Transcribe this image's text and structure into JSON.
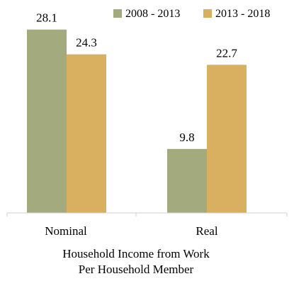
{
  "chart_data": {
    "type": "bar",
    "categories": [
      "Nominal",
      "Real"
    ],
    "series": [
      {
        "name": "2008 - 2013",
        "values": [
          28.1,
          9.8
        ],
        "color": "#A3AA7E"
      },
      {
        "name": "2013 - 2018",
        "values": [
          24.3,
          22.7
        ],
        "color": "#D9B05F"
      }
    ],
    "xlabel": "Household Income from Work",
    "xlabel_line2": "Per Household Member",
    "ylim": [
      0,
      31
    ],
    "legend_position": "top-right",
    "grid": false,
    "value_labels": true
  }
}
